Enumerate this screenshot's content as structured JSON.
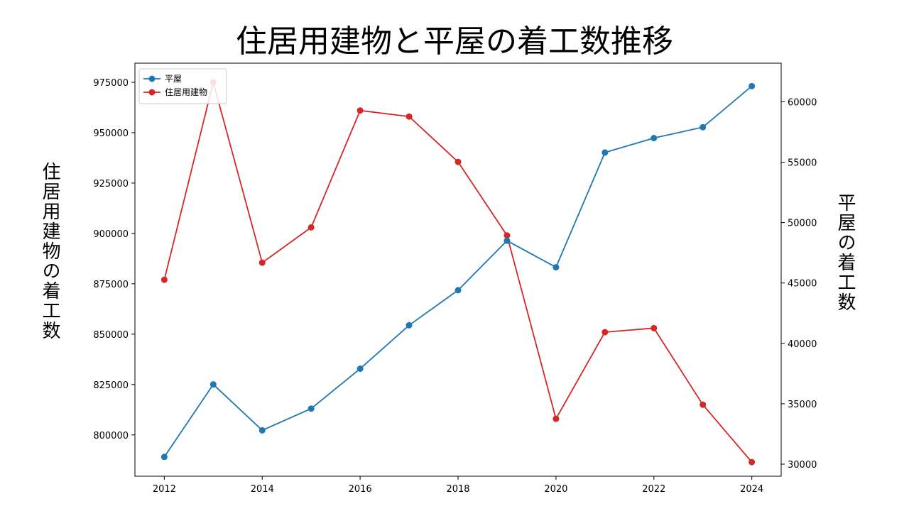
{
  "chart_data": {
    "type": "line",
    "title": "住居用建物と平屋の着工数推移",
    "x": [
      2012,
      2013,
      2014,
      2015,
      2016,
      2017,
      2018,
      2019,
      2020,
      2021,
      2022,
      2023,
      2024
    ],
    "x_ticks": [
      "2012",
      "2014",
      "2016",
      "2018",
      "2020",
      "2022",
      "2024"
    ],
    "xlim": [
      2011.4,
      2024.6
    ],
    "ylabel_left": "住居用建物の着工数",
    "ylabel_right": "平屋の着工数",
    "ylim_left": [
      779500,
      984500
    ],
    "ylim_right": [
      29000,
      63200
    ],
    "y_ticks_left": [
      "800000",
      "825000",
      "850000",
      "875000",
      "900000",
      "925000",
      "950000",
      "975000"
    ],
    "y_ticks_right": [
      "30000",
      "35000",
      "40000",
      "45000",
      "50000",
      "55000",
      "60000"
    ],
    "series": [
      {
        "name": "平屋",
        "axis": "right",
        "color": "#1f77b4",
        "values": [
          30600,
          36600,
          32800,
          34600,
          37900,
          41500,
          44400,
          48500,
          46300,
          55800,
          57000,
          57900,
          61300
        ]
      },
      {
        "name": "住居用建物",
        "axis": "left",
        "color": "#d62728",
        "values": [
          877000,
          975000,
          885500,
          903000,
          961000,
          958000,
          935500,
          899000,
          808000,
          851000,
          853000,
          815000,
          786500
        ]
      }
    ],
    "legend": "top-left",
    "grid": false
  }
}
